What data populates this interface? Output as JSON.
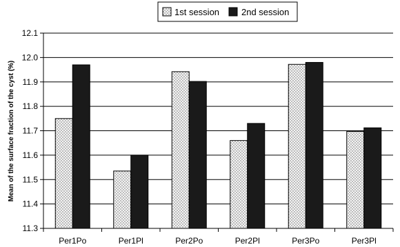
{
  "chart_data": {
    "type": "bar",
    "categories": [
      "Per1Po",
      "Per1Pl",
      "Per2Po",
      "Per2Pl",
      "Per3Po",
      "Per3Pl"
    ],
    "series": [
      {
        "name": "1st session",
        "values": [
          11.75,
          11.535,
          11.942,
          11.66,
          11.972,
          11.697
        ],
        "color": "#f0f0f0",
        "pattern": "dotted"
      },
      {
        "name": "2nd session",
        "values": [
          11.97,
          11.6,
          11.902,
          11.73,
          11.98,
          11.712
        ],
        "color": "#1a1a1a",
        "pattern": "solid"
      }
    ],
    "title": "",
    "xlabel": "",
    "ylabel": "Mean of the surface fraction of the cyst (%)",
    "ylim": [
      11.3,
      12.1
    ],
    "yticks": [
      "11.3",
      "11.4",
      "11.5",
      "11.6",
      "11.7",
      "11.8",
      "11.9",
      "12.0",
      "12.1"
    ],
    "grid": "horizontal",
    "legend_placement": "top-center"
  }
}
